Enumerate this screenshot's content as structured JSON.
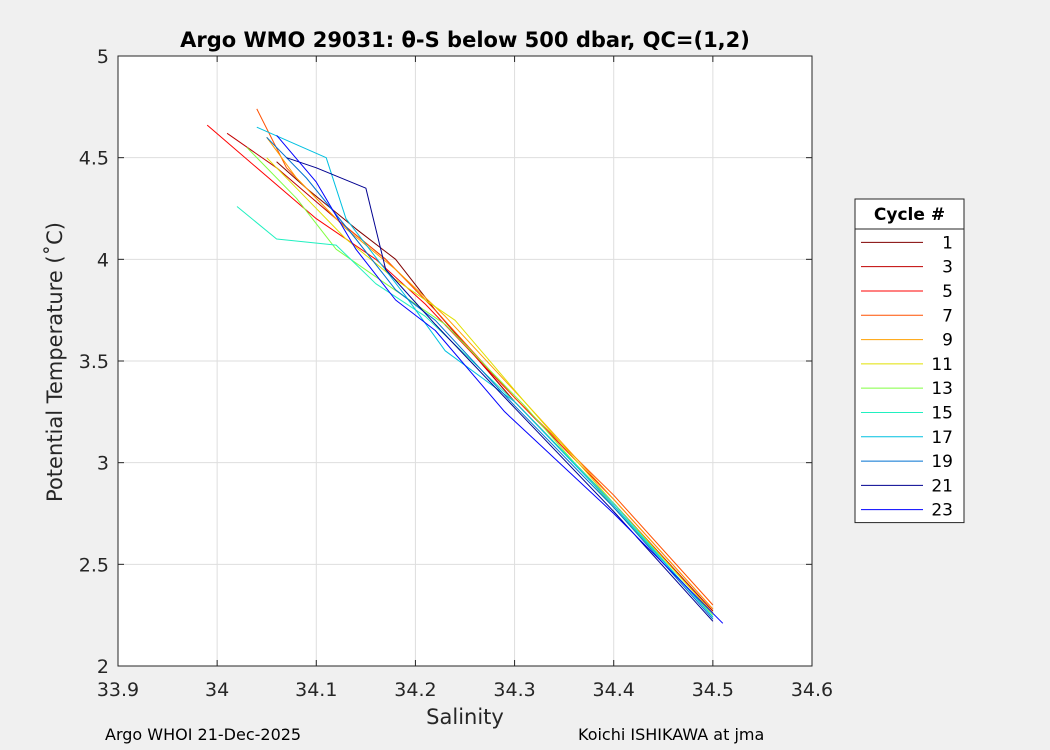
{
  "chart_data": {
    "type": "line",
    "title": "Argo WMO 29031: θ-S below 500 dbar,  QC=(1,2)",
    "xlabel": "Salinity",
    "ylabel": "Potential Temperature (˚C)",
    "xlim": [
      33.9,
      34.6
    ],
    "ylim": [
      2,
      5
    ],
    "xticks": [
      33.9,
      34.0,
      34.1,
      34.2,
      34.3,
      34.4,
      34.5,
      34.6
    ],
    "xtick_labels": [
      "33.9",
      "34",
      "34.1",
      "34.2",
      "34.3",
      "34.4",
      "34.5",
      "34.6"
    ],
    "yticks": [
      2,
      2.5,
      3,
      3.5,
      4,
      4.5,
      5
    ],
    "ytick_labels": [
      "2",
      "2.5",
      "3",
      "3.5",
      "4",
      "4.5",
      "5"
    ],
    "grid": true,
    "legend_title": "Cycle #",
    "legend_position": "right",
    "series": [
      {
        "name": "1",
        "color": "#800000",
        "x": [
          34.06,
          34.09,
          34.14,
          34.18,
          34.22,
          34.3,
          34.4,
          34.5
        ],
        "y": [
          4.48,
          4.35,
          4.15,
          4.0,
          3.75,
          3.3,
          2.8,
          2.26
        ]
      },
      {
        "name": "3",
        "color": "#c00000",
        "x": [
          34.01,
          34.06,
          34.12,
          34.17,
          34.22,
          34.3,
          34.4,
          34.5
        ],
        "y": [
          4.62,
          4.45,
          4.2,
          4.0,
          3.75,
          3.3,
          2.8,
          2.27
        ]
      },
      {
        "name": "5",
        "color": "#ff0000",
        "x": [
          33.99,
          34.04,
          34.1,
          34.16,
          34.21,
          34.3,
          34.4,
          34.5
        ],
        "y": [
          4.66,
          4.45,
          4.2,
          4.0,
          3.78,
          3.32,
          2.82,
          2.28
        ]
      },
      {
        "name": "7",
        "color": "#ff5000",
        "x": [
          34.04,
          34.07,
          34.12,
          34.17,
          34.22,
          34.3,
          34.4,
          34.5
        ],
        "y": [
          4.74,
          4.45,
          4.2,
          4.0,
          3.75,
          3.32,
          2.84,
          2.3
        ]
      },
      {
        "name": "9",
        "color": "#ffa000",
        "x": [
          34.05,
          34.08,
          34.13,
          34.18,
          34.23,
          34.31,
          34.4,
          34.5
        ],
        "y": [
          4.6,
          4.4,
          4.15,
          3.95,
          3.72,
          3.3,
          2.82,
          2.28
        ]
      },
      {
        "name": "11",
        "color": "#e0e000",
        "x": [
          34.05,
          34.09,
          34.13,
          34.18,
          34.24,
          34.31,
          34.4,
          34.5
        ],
        "y": [
          4.5,
          4.3,
          4.1,
          3.9,
          3.7,
          3.3,
          2.8,
          2.26
        ]
      },
      {
        "name": "13",
        "color": "#80ff40",
        "x": [
          34.03,
          34.08,
          34.12,
          34.17,
          34.23,
          34.31,
          34.4,
          34.5
        ],
        "y": [
          4.55,
          4.3,
          4.05,
          3.88,
          3.68,
          3.28,
          2.78,
          2.25
        ]
      },
      {
        "name": "15",
        "color": "#20f0c0",
        "x": [
          34.02,
          34.06,
          34.12,
          34.16,
          34.21,
          34.3,
          34.4,
          34.5
        ],
        "y": [
          4.26,
          4.1,
          4.07,
          3.88,
          3.72,
          3.3,
          2.8,
          2.24
        ]
      },
      {
        "name": "17",
        "color": "#00c0e0",
        "x": [
          34.04,
          34.11,
          34.13,
          34.19,
          34.23,
          34.3,
          34.4,
          34.5
        ],
        "y": [
          4.65,
          4.5,
          4.2,
          3.82,
          3.55,
          3.3,
          2.79,
          2.24
        ]
      },
      {
        "name": "19",
        "color": "#0070d0",
        "x": [
          34.05,
          34.09,
          34.14,
          34.18,
          34.22,
          34.3,
          34.4,
          34.5
        ],
        "y": [
          4.6,
          4.4,
          4.1,
          3.85,
          3.7,
          3.28,
          2.78,
          2.23
        ]
      },
      {
        "name": "21",
        "color": "#000090",
        "x": [
          34.07,
          34.1,
          34.15,
          34.17,
          34.22,
          34.3,
          34.4,
          34.5
        ],
        "y": [
          4.5,
          4.45,
          4.35,
          3.95,
          3.68,
          3.27,
          2.76,
          2.22
        ]
      },
      {
        "name": "23",
        "color": "#0000ff",
        "x": [
          34.06,
          34.1,
          34.14,
          34.18,
          34.22,
          34.29,
          34.4,
          34.51
        ],
        "y": [
          4.61,
          4.38,
          4.05,
          3.8,
          3.65,
          3.25,
          2.75,
          2.21
        ]
      }
    ]
  },
  "footer": {
    "left": "Argo WHOI 21-Dec-2025",
    "right": "Koichi ISHIKAWA at jma"
  }
}
